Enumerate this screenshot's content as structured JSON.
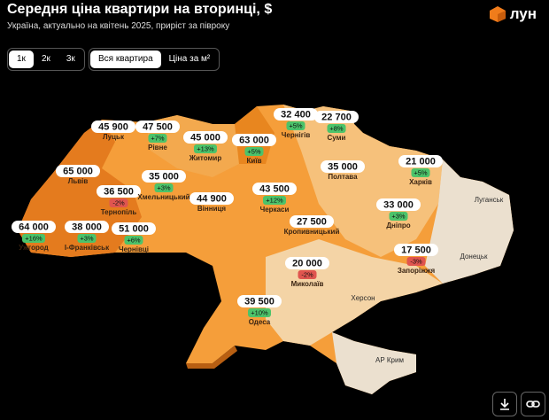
{
  "header": {
    "title": "Середня ціна квартири на вторинці, $",
    "subtitle": "Україна, актуально на квітень 2025, приріст за півроку",
    "logo": "лун"
  },
  "tabs": {
    "rooms": [
      "1к",
      "2к",
      "3к"
    ],
    "measure": [
      "Вся квартира",
      "Ціна за м²"
    ]
  },
  "map": {
    "regions": [
      {
        "name": "Луцьк",
        "price": "45 900"
      },
      {
        "name": "Рівне",
        "price": "47 500",
        "change": "+7%"
      },
      {
        "name": "Житомир",
        "price": "45 000",
        "change": "+13%"
      },
      {
        "name": "Київ",
        "price": "63 000",
        "change": "+5%"
      },
      {
        "name": "Чернігів",
        "price": "32 400",
        "change": "+5%"
      },
      {
        "name": "Суми",
        "price": "22 700",
        "change": "+8%"
      },
      {
        "name": "Львів",
        "price": "65 000"
      },
      {
        "name": "Тернопіль",
        "price": "36 500",
        "change": "-2%"
      },
      {
        "name": "Хмельницький",
        "price": "35 000",
        "change": "+3%"
      },
      {
        "name": "Вінниця",
        "price": "44 900"
      },
      {
        "name": "Черкаси",
        "price": "43 500",
        "change": "+12%"
      },
      {
        "name": "Полтава",
        "price": "35 000"
      },
      {
        "name": "Харків",
        "price": "21 000",
        "change": "+5%"
      },
      {
        "name": "Ужгород",
        "price": "64 000",
        "change": "+16%"
      },
      {
        "name": "І-Франківськ",
        "price": "38 000",
        "change": "+3%"
      },
      {
        "name": "Чернівці",
        "price": "51 000",
        "change": "+6%"
      },
      {
        "name": "Кропивницький",
        "price": "27 500"
      },
      {
        "name": "Дніпро",
        "price": "33 000",
        "change": "+3%"
      },
      {
        "name": "Запоріжжя",
        "price": "17 500",
        "change": "-3%"
      },
      {
        "name": "Миколаїв",
        "price": "20 000",
        "change": "-2%"
      },
      {
        "name": "Одеса",
        "price": "39 500",
        "change": "+10%"
      }
    ],
    "labels": [
      "Луганськ",
      "Донецьк",
      "Херсон",
      "АР Крим"
    ]
  }
}
